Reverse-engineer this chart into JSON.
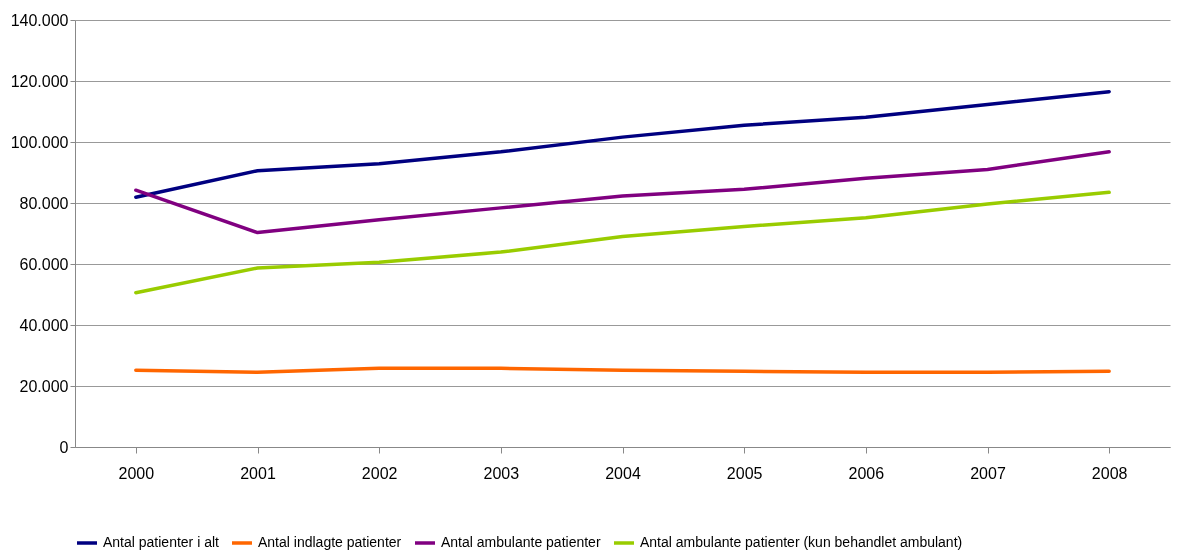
{
  "chart_data": {
    "type": "line",
    "categories": [
      "2000",
      "2001",
      "2002",
      "2003",
      "2004",
      "2005",
      "2006",
      "2007",
      "2008"
    ],
    "series": [
      {
        "name": "Antal patienter i alt",
        "color": "#000080",
        "values": [
          81900,
          90600,
          92900,
          96800,
          101600,
          105500,
          108100,
          112300,
          116500
        ]
      },
      {
        "name": "Antal indlagte patienter",
        "color": "#ff6600",
        "values": [
          25200,
          24500,
          25800,
          25800,
          25200,
          24800,
          24500,
          24500,
          24800
        ]
      },
      {
        "name": "Antal ambulante patienter",
        "color": "#800080",
        "values": [
          84200,
          70300,
          74500,
          78400,
          82300,
          84500,
          88100,
          91000,
          96800
        ]
      },
      {
        "name": "Antal ambulante patienter (kun behandlet ambulant)",
        "color": "#99cc00",
        "values": [
          50600,
          58700,
          60600,
          63900,
          69000,
          72300,
          75200,
          79700,
          83500
        ]
      }
    ],
    "ylim": [
      0,
      140000
    ],
    "yticks": [
      {
        "value": 0,
        "label": "0"
      },
      {
        "value": 20000,
        "label": "20.000"
      },
      {
        "value": 40000,
        "label": "40.000"
      },
      {
        "value": 60000,
        "label": "60.000"
      },
      {
        "value": 80000,
        "label": "80.000"
      },
      {
        "value": 100000,
        "label": "100.000"
      },
      {
        "value": 120000,
        "label": "120.000"
      },
      {
        "value": 140000,
        "label": "140.000"
      }
    ],
    "grid": "y",
    "legend": "bottom",
    "line_style": "solid"
  }
}
